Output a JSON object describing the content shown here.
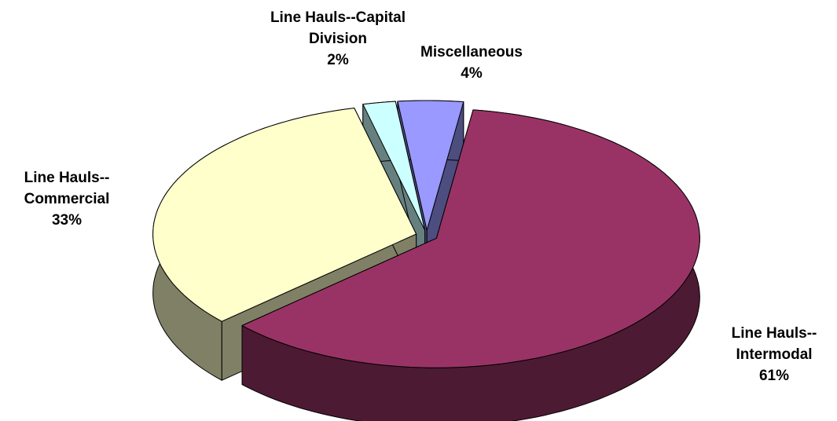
{
  "chart_data": {
    "type": "pie3d",
    "categories": [
      "Line Hauls--Intermodal",
      "Line Hauls--Commercial",
      "Line Hauls--Capital Division",
      "Miscellaneous"
    ],
    "values": [
      61,
      33,
      2,
      4
    ],
    "value_labels": [
      "61%",
      "33%",
      "2%",
      "4%"
    ],
    "colors": [
      "#993366",
      "#ffffcc",
      "#ccffff",
      "#9999ff"
    ]
  }
}
